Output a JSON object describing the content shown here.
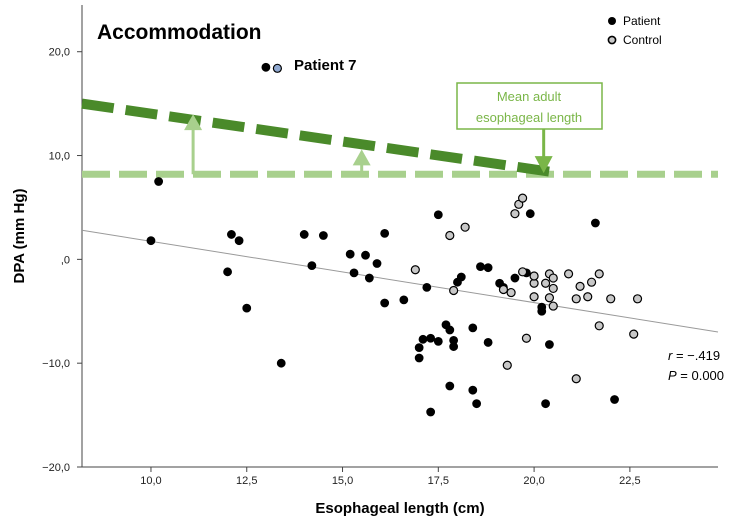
{
  "chart_data": {
    "type": "scatter",
    "title": "Accommodation",
    "xlabel": "Esophageal length (cm)",
    "ylabel": "DPA (mm Hg)",
    "xlim": [
      8.2,
      24.8
    ],
    "ylim": [
      -20,
      24.5
    ],
    "x_ticks": [
      {
        "v": 10,
        "label": "10,0"
      },
      {
        "v": 12.5,
        "label": "12,5"
      },
      {
        "v": 15,
        "label": "15,0"
      },
      {
        "v": 17.5,
        "label": "17,5"
      },
      {
        "v": 20,
        "label": "20,0"
      },
      {
        "v": 22.5,
        "label": "22,5"
      }
    ],
    "y_ticks": [
      {
        "v": 20,
        "label": "20,0"
      },
      {
        "v": 10,
        "label": "10,0"
      },
      {
        "v": 0,
        "label": ",0"
      },
      {
        "v": -10,
        "label": "−10,0"
      },
      {
        "v": -20,
        "label": "−20,0"
      }
    ],
    "legend_position": "top-right",
    "series": [
      {
        "name": "Patient",
        "color": "#000000",
        "points": [
          [
            10.0,
            1.8
          ],
          [
            10.2,
            7.5
          ],
          [
            12.0,
            -1.2
          ],
          [
            12.1,
            2.4
          ],
          [
            12.3,
            1.8
          ],
          [
            12.5,
            -4.7
          ],
          [
            13.4,
            -10.0
          ],
          [
            14.0,
            2.4
          ],
          [
            14.2,
            -0.6
          ],
          [
            14.5,
            2.3
          ],
          [
            15.2,
            0.5
          ],
          [
            15.3,
            -1.3
          ],
          [
            15.6,
            0.4
          ],
          [
            15.7,
            -1.8
          ],
          [
            15.9,
            -0.4
          ],
          [
            16.1,
            2.5
          ],
          [
            16.1,
            -4.2
          ],
          [
            16.6,
            -3.9
          ],
          [
            17.0,
            -8.5
          ],
          [
            17.0,
            -9.5
          ],
          [
            17.1,
            -7.7
          ],
          [
            17.2,
            -2.7
          ],
          [
            17.3,
            -7.6
          ],
          [
            17.3,
            -14.7
          ],
          [
            17.5,
            4.3
          ],
          [
            17.5,
            -7.9
          ],
          [
            17.7,
            -6.3
          ],
          [
            17.8,
            -6.8
          ],
          [
            17.8,
            -12.2
          ],
          [
            17.9,
            -7.8
          ],
          [
            17.9,
            -8.4
          ],
          [
            18.0,
            -2.2
          ],
          [
            18.1,
            -1.7
          ],
          [
            18.4,
            -6.6
          ],
          [
            18.4,
            -12.6
          ],
          [
            18.5,
            -13.9
          ],
          [
            18.6,
            -0.7
          ],
          [
            18.8,
            -8.0
          ],
          [
            18.8,
            -0.8
          ],
          [
            19.1,
            -2.3
          ],
          [
            19.2,
            -2.7
          ],
          [
            19.5,
            -1.8
          ],
          [
            19.8,
            -1.3
          ],
          [
            19.9,
            4.4
          ],
          [
            20.2,
            -4.6
          ],
          [
            20.2,
            -5.0
          ],
          [
            20.3,
            -13.9
          ],
          [
            20.4,
            -8.2
          ],
          [
            21.6,
            3.5
          ],
          [
            22.1,
            -13.5
          ]
        ]
      },
      {
        "name": "Control",
        "color": "#c8c8c8",
        "points": [
          [
            16.9,
            -1.0
          ],
          [
            17.8,
            2.3
          ],
          [
            17.9,
            -3.0
          ],
          [
            18.2,
            3.1
          ],
          [
            19.2,
            -2.9
          ],
          [
            19.3,
            -10.2
          ],
          [
            19.4,
            -3.2
          ],
          [
            19.5,
            4.4
          ],
          [
            19.6,
            5.3
          ],
          [
            19.7,
            -1.2
          ],
          [
            19.8,
            -7.6
          ],
          [
            20.0,
            -2.3
          ],
          [
            20.0,
            -1.6
          ],
          [
            20.0,
            -3.6
          ],
          [
            20.3,
            -2.3
          ],
          [
            20.4,
            -1.4
          ],
          [
            20.4,
            -3.7
          ],
          [
            20.5,
            -4.5
          ],
          [
            20.5,
            -2.8
          ],
          [
            20.5,
            -1.8
          ],
          [
            20.9,
            -1.4
          ],
          [
            21.1,
            -3.8
          ],
          [
            21.1,
            -11.5
          ],
          [
            21.2,
            -2.6
          ],
          [
            21.4,
            -3.6
          ],
          [
            21.5,
            -2.2
          ],
          [
            21.7,
            -1.4
          ],
          [
            21.7,
            -6.4
          ],
          [
            22.0,
            -3.8
          ],
          [
            22.6,
            -7.2
          ],
          [
            22.7,
            -3.8
          ],
          [
            19.7,
            5.9
          ]
        ]
      }
    ],
    "highlight_point": {
      "label": "Patient 7",
      "x": 13.3,
      "y": 18.4,
      "color": "#8fa8d0"
    },
    "highlight_extra_point": {
      "x": 13.0,
      "y": 18.5
    },
    "regression_line": {
      "x": [
        8.2,
        24.8
      ],
      "y": [
        2.8,
        -7.0
      ],
      "color": "#9a9a9a"
    },
    "light_dashed_line": {
      "x": [
        8.2,
        24.8
      ],
      "y": [
        8.2,
        8.2
      ],
      "color": "#a8d08d"
    },
    "dark_dashed_line": {
      "x": [
        8.2,
        20.5
      ],
      "y": [
        15.0,
        8.4
      ],
      "color": "#4a8a2a"
    },
    "up_arrows": [
      {
        "x": 11.1,
        "from": 8.2,
        "to": 13.8,
        "color": "#a8d08d"
      },
      {
        "x": 15.5,
        "from": 8.2,
        "to": 10.4,
        "color": "#a8d08d"
      }
    ],
    "down_arrow": {
      "x": 20.25,
      "from": 12.8,
      "to": 8.4,
      "color": "#7ab648"
    },
    "annotation_box": {
      "lines": [
        "Mean adult",
        "esophageal length"
      ],
      "color": "#7ab648"
    },
    "stats": {
      "r_label": "r",
      "r_value": " = −.419",
      "p_label": "P",
      "p_value": " = 0.000"
    }
  }
}
